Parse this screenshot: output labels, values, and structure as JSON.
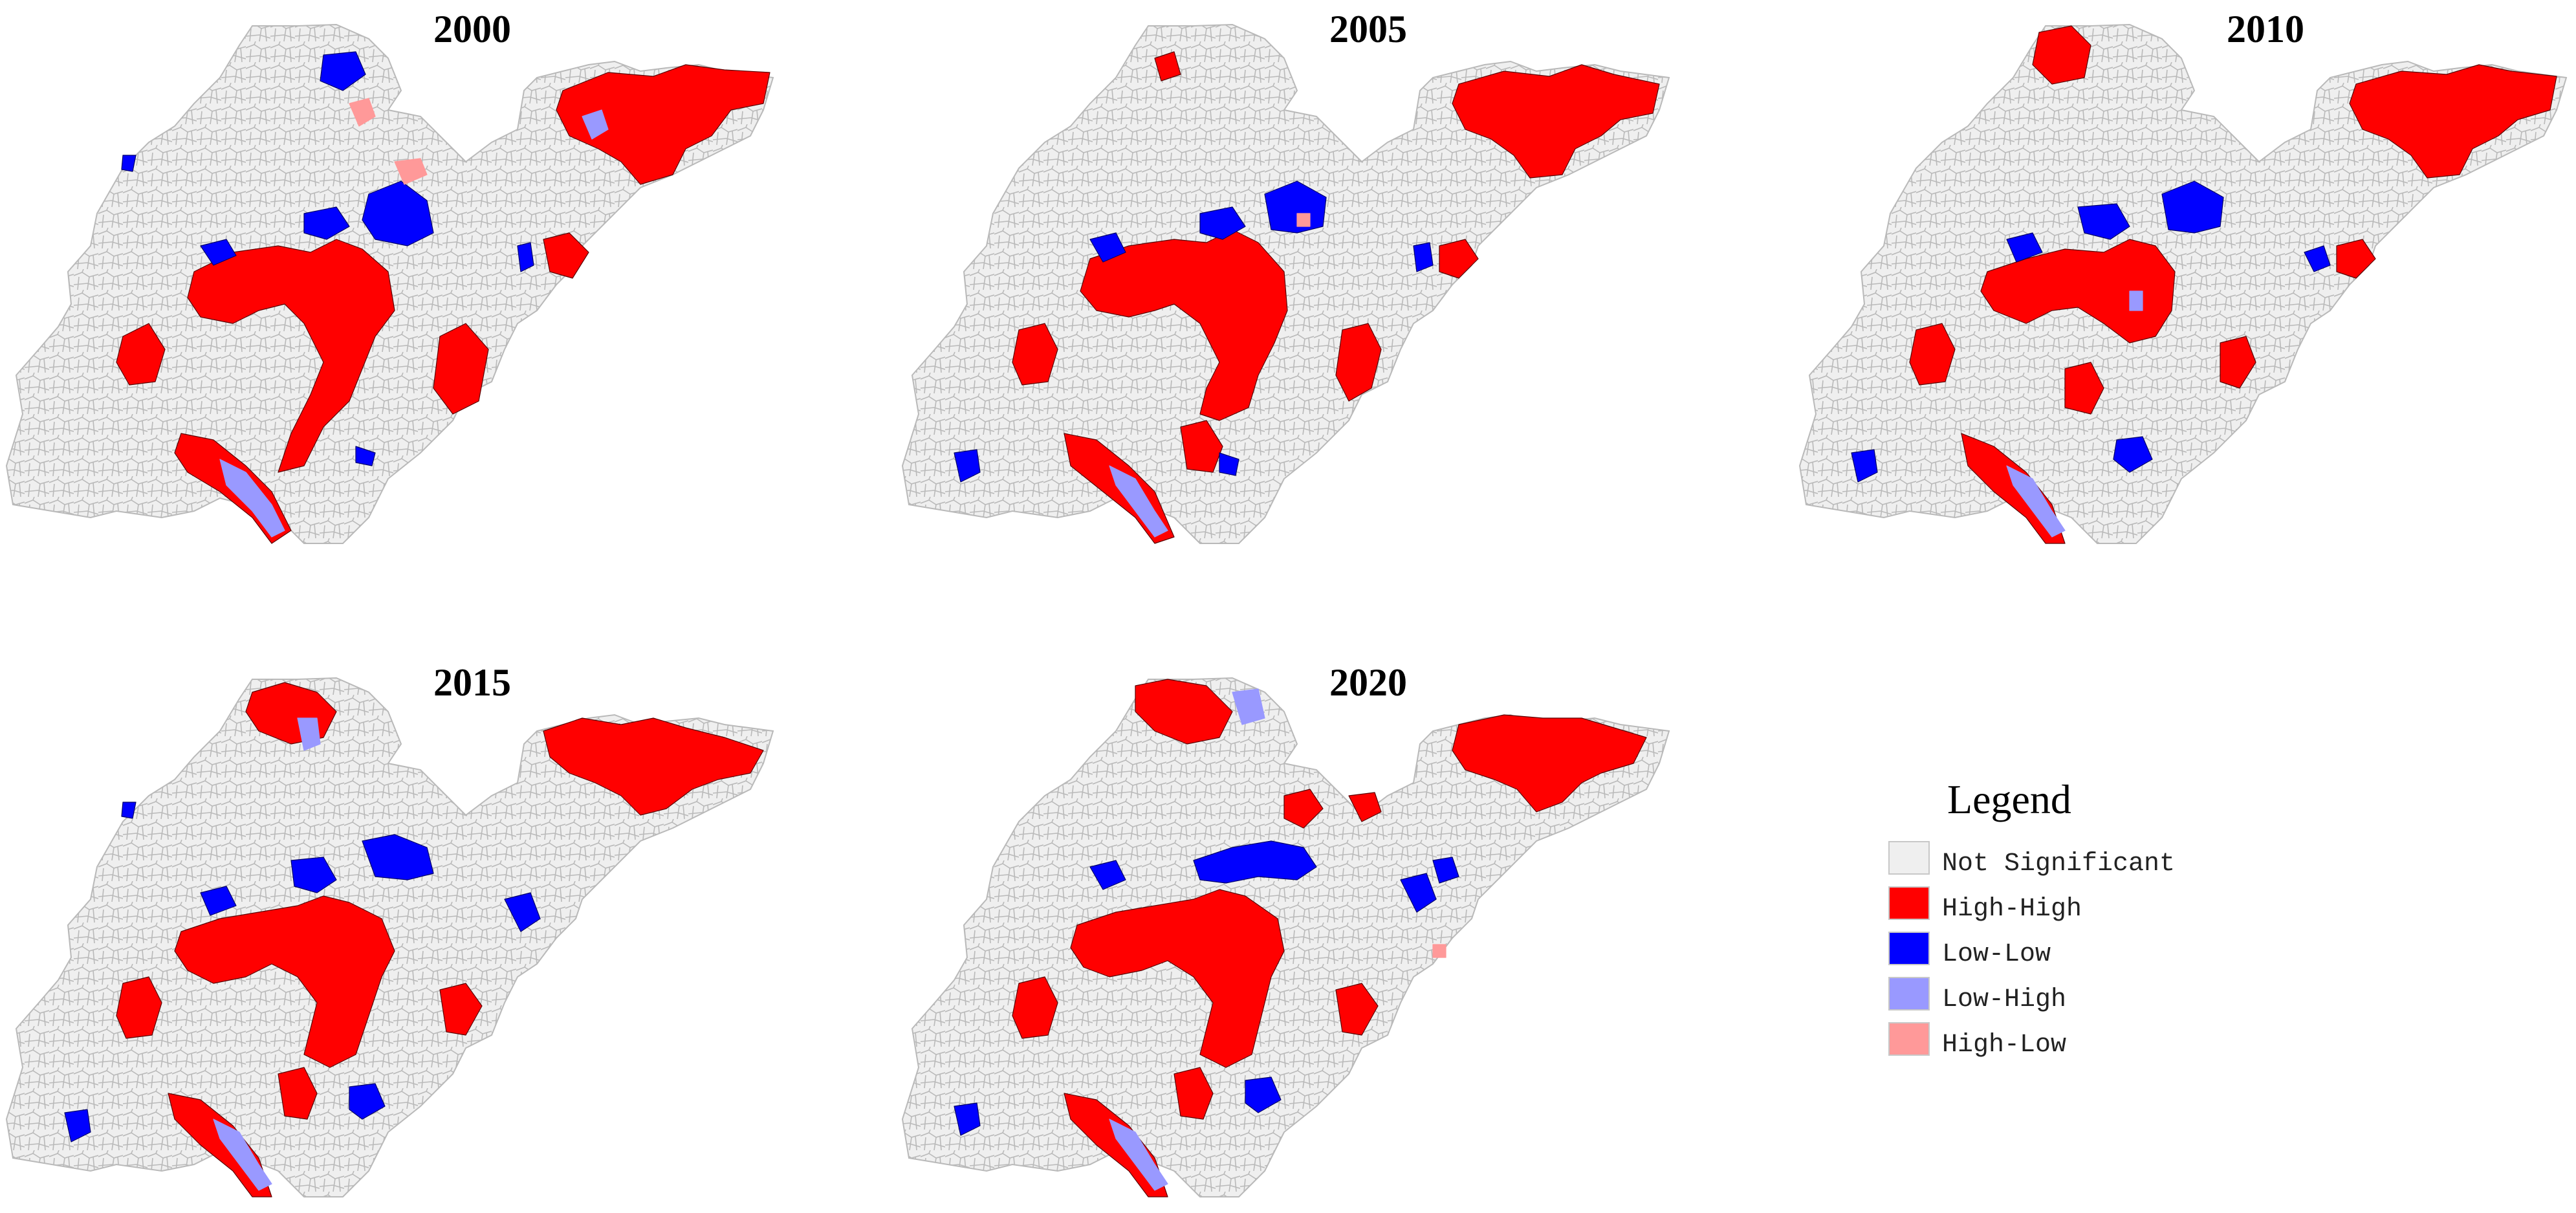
{
  "colors": {
    "not_significant": "#efefef",
    "boundary": "#b9b9b9",
    "high_high": "#ff0000",
    "low_low": "#0000ff",
    "low_high": "#9999ff",
    "high_low": "#ff9999"
  },
  "panels": [
    {
      "year": "2000"
    },
    {
      "year": "2005"
    },
    {
      "year": "2010"
    },
    {
      "year": "2015"
    },
    {
      "year": "2020"
    }
  ],
  "legend": {
    "title": "Legend",
    "items": [
      {
        "label": "Not Significant",
        "class": "not_significant"
      },
      {
        "label": "High-High",
        "class": "high_high"
      },
      {
        "label": "Low-Low",
        "class": "low_low"
      },
      {
        "label": "Low-High",
        "class": "low_high"
      },
      {
        "label": "High-Low",
        "class": "high_low"
      }
    ]
  }
}
